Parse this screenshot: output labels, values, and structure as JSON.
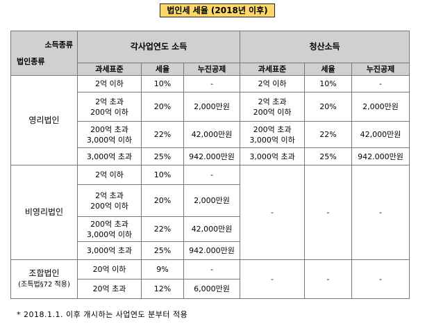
{
  "title": "법인세 세율 (2018년 이후)",
  "header": {
    "corner_top": "소득종류",
    "corner_bottom": "법인종류",
    "group1": "각사업연도 소득",
    "group2": "청산소득",
    "cols": [
      "과세표준",
      "세율",
      "누진공제",
      "과세표준",
      "세율",
      "누진공제"
    ]
  },
  "profit": {
    "label": "영리법인",
    "rows": [
      [
        "2억 이하",
        "10%",
        "-",
        "2억 이하",
        "10%",
        "-"
      ],
      [
        "2억 초과\n200억 이하",
        "20%",
        "2,000만원",
        "2억 초과\n200억 이하",
        "20%",
        "2,000만원"
      ],
      [
        "200억 초과\n3,000억 이하",
        "22%",
        "42,000만원",
        "200억 초과\n3,000억 이하",
        "22%",
        "42,000만원"
      ],
      [
        "3,000억 초과",
        "25%",
        "942.000만원",
        "3,000억 초과",
        "25%",
        "942.000만원"
      ]
    ]
  },
  "nonprofit": {
    "label": "비영리법인",
    "rows": [
      [
        "2억 이하",
        "10%",
        "-"
      ],
      [
        "2억 초과\n200억 이하",
        "20%",
        "2,000만원"
      ],
      [
        "200억 초과\n3,000억 이하",
        "22%",
        "42,000만원"
      ],
      [
        "3,000억 초과",
        "25%",
        "942.000만원"
      ]
    ],
    "liquidation": [
      "-",
      "-",
      "-"
    ]
  },
  "union": {
    "label": "조합법인",
    "sublabel": "(조특법§72 적용)",
    "rows": [
      [
        "20억 이하",
        "9%",
        "-"
      ],
      [
        "20억 초과",
        "12%",
        "6,000만원"
      ]
    ],
    "liquidation": [
      "-",
      "-",
      "-"
    ]
  },
  "note": "* 2018.1.1. 이후 개시하는 사업연도 분부터 적용"
}
